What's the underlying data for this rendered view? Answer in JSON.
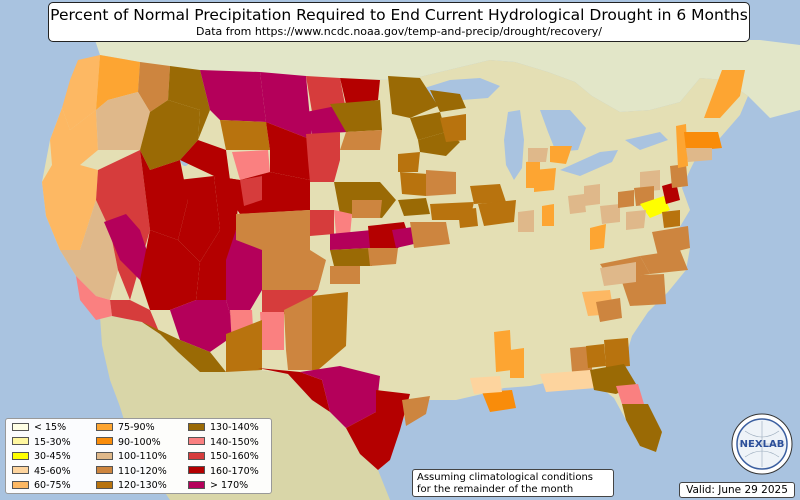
{
  "title": "Percent of Normal Precipitation Required to End Current Hydrological Drought in 6 Months",
  "subtitle": "Data from https://www.ncdc.noaa.gov/temp-and-precip/drought/recovery/",
  "note": "Assuming climatological conditions\nfor the remainder of the month",
  "valid": "Valid: June 29 2025",
  "logo_text": "NEXLAB",
  "colors": {
    "ocean": "#a9c3e0",
    "land": "#e4dfb4",
    "lt15": "#ffffe5",
    "c15_30": "#fff7a0",
    "c30_45": "#ffff00",
    "c45_60": "#fdd49e",
    "c60_75": "#fdb863",
    "c75_90": "#fda532",
    "c90_100": "#f98c0a",
    "c100_110": "#dfb88a",
    "c110_120": "#cd853f",
    "c120_130": "#b8730e",
    "c130_140": "#9a6a05",
    "c140_150": "#fa8080",
    "c150_160": "#d63c3c",
    "c160_170": "#b40000",
    "gt170": "#b4005a"
  },
  "legend": [
    {
      "label": "< 15%",
      "color": "#ffffe5"
    },
    {
      "label": "15-30%",
      "color": "#fff7a0"
    },
    {
      "label": "30-45%",
      "color": "#ffff00"
    },
    {
      "label": "45-60%",
      "color": "#fdd49e"
    },
    {
      "label": "60-75%",
      "color": "#fdb863"
    },
    {
      "label": "75-90%",
      "color": "#fda532"
    },
    {
      "label": "90-100%",
      "color": "#f98c0a"
    },
    {
      "label": "100-110%",
      "color": "#dfb88a"
    },
    {
      "label": "110-120%",
      "color": "#cd853f"
    },
    {
      "label": "120-130%",
      "color": "#b8730e"
    },
    {
      "label": "130-140%",
      "color": "#9a6a05"
    },
    {
      "label": "140-150%",
      "color": "#fa8080"
    },
    {
      "label": "150-160%",
      "color": "#d63c3c"
    },
    {
      "label": "160-170%",
      "color": "#b40000"
    },
    {
      "label": "> 170%",
      "color": "#b4005a"
    }
  ]
}
